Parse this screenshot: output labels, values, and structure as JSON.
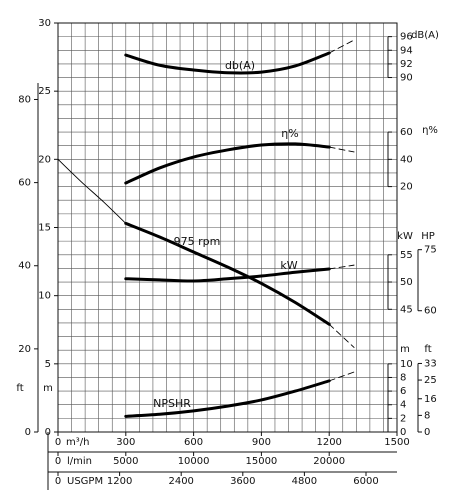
{
  "chart_data": {
    "type": "line",
    "xlim": [
      0,
      1500
    ],
    "xticks": [
      0,
      300,
      600,
      900,
      1200,
      1500
    ],
    "x_label": "m³/h",
    "xgrid": [
      0,
      60,
      120,
      180,
      240,
      300,
      360,
      420,
      480,
      540,
      600,
      660,
      720,
      780,
      840,
      900,
      960,
      1020,
      1080,
      1140,
      1200,
      1260,
      1320,
      1380,
      1440,
      1500
    ],
    "ylim": [
      0,
      30
    ],
    "yticks": [
      0,
      5,
      10,
      15,
      20,
      25,
      30
    ],
    "y_label": "m",
    "ygrid": [
      0,
      1,
      2,
      3,
      4,
      5,
      6,
      7,
      8,
      9,
      10,
      11,
      12,
      13,
      14,
      15,
      16,
      17,
      18,
      19,
      20,
      21,
      22,
      23,
      24,
      25,
      26,
      27,
      28,
      29,
      30
    ],
    "ft_axis": {
      "label": "ft",
      "lim": [
        0,
        98.4
      ],
      "ticks": [
        0,
        20,
        40,
        60,
        80
      ]
    },
    "right_axes": [
      {
        "label": "dB(A)",
        "lim": [
          38,
          98
        ],
        "ticks": [
          90,
          92,
          94,
          96
        ]
      },
      {
        "label": "η%",
        "lim": [
          -160,
          140
        ],
        "ticks": [
          20,
          40,
          60
        ]
      },
      {
        "label": "kW",
        "lim": [
          22.5,
          97.5
        ],
        "ticks": [
          45,
          50,
          55
        ]
      },
      {
        "label": "HP",
        "lim": [
          30.2,
          130.7
        ],
        "ticks": [
          60,
          75
        ]
      },
      {
        "label": "m",
        "lim": [
          0,
          60
        ],
        "ticks": [
          0,
          2,
          4,
          6,
          8,
          10
        ]
      },
      {
        "label": "ft",
        "lim": [
          0,
          196.9
        ],
        "ticks": [
          0,
          8,
          16,
          25,
          33
        ]
      }
    ],
    "flow_axes": [
      {
        "label": "l/min",
        "lim": [
          0,
          25000
        ],
        "ticks": [
          0,
          5000,
          10000,
          15000,
          20000
        ]
      },
      {
        "label": "USGPM",
        "lim": [
          0,
          6604
        ],
        "ticks": [
          0,
          1200,
          2400,
          3600,
          4800,
          6000
        ]
      }
    ],
    "solid_range": [
      300,
      1200
    ],
    "series": [
      {
        "name": "db(A)",
        "axis": 0,
        "x": [
          300,
          450,
          600,
          750,
          900,
          1050,
          1200,
          1310
        ],
        "values": [
          93.3,
          91.8,
          91.1,
          90.7,
          90.8,
          91.7,
          93.6,
          95.5
        ]
      },
      {
        "name": "η%",
        "axis": 1,
        "x": [
          300,
          450,
          600,
          750,
          900,
          1050,
          1200,
          1310
        ],
        "values": [
          22.6,
          33.7,
          41.7,
          46.9,
          50.5,
          51.3,
          49.0,
          45.4
        ]
      },
      {
        "name": "975 rpm",
        "x": [
          0,
          100,
          200,
          300,
          450,
          600,
          750,
          900,
          1050,
          1200,
          1310
        ],
        "values": [
          20,
          18.4,
          16.9,
          15.3,
          14.3,
          13.2,
          12.1,
          10.9,
          9.5,
          7.9,
          6.2
        ]
      },
      {
        "name": "kW",
        "axis": 2,
        "x": [
          300,
          450,
          600,
          750,
          900,
          1050,
          1200,
          1310
        ],
        "values": [
          50.6,
          50.4,
          50.2,
          50.6,
          51.1,
          51.8,
          52.4,
          53.1
        ]
      },
      {
        "name": "NPSHR",
        "axis": 4,
        "x": [
          300,
          450,
          600,
          750,
          900,
          1050,
          1200,
          1310
        ],
        "values": [
          2.3,
          2.6,
          3.1,
          3.8,
          4.7,
          6.0,
          7.5,
          8.8
        ]
      }
    ]
  }
}
